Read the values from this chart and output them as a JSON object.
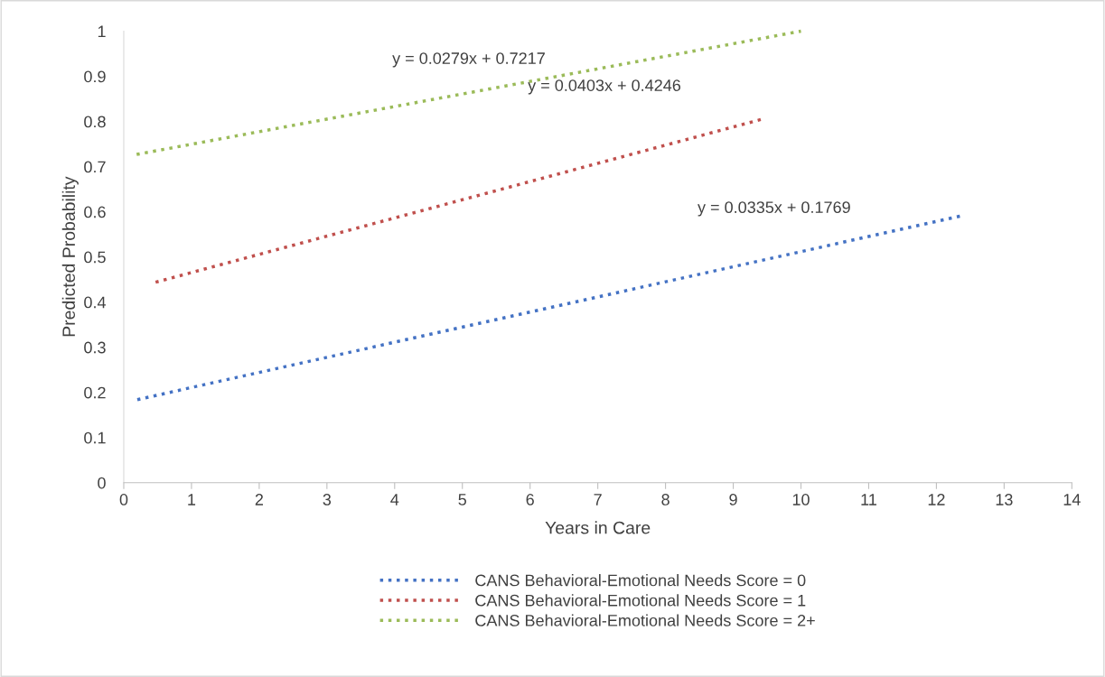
{
  "chart_data": {
    "type": "line",
    "xlabel": "Years in Care",
    "ylabel": "Predicted Probability",
    "series": [
      {
        "name": "CANS Behavioral-Emotional Needs Score = 0",
        "color": "#4472c4",
        "x": [
          0.2,
          12.4
        ],
        "values": [
          0.184,
          0.592
        ]
      },
      {
        "name": "CANS Behavioral-Emotional Needs Score = 1",
        "color": "#c0504d",
        "x": [
          0.47,
          9.45
        ],
        "values": [
          0.444,
          0.806
        ]
      },
      {
        "name": "CANS Behavioral-Emotional Needs Score = 2+",
        "color": "#9bbb59",
        "x": [
          0.19,
          10.0
        ],
        "values": [
          0.727,
          1.0
        ]
      }
    ],
    "annotations": [
      "y = 0.0279x + 0.7217",
      "y = 0.0403x + 0.4246",
      "y = 0.0335x + 0.1769"
    ],
    "xlim": [
      0,
      14
    ],
    "xticks": [
      0,
      1,
      2,
      3,
      4,
      5,
      6,
      7,
      8,
      9,
      10,
      11,
      12,
      13,
      14
    ],
    "ylim": [
      0,
      1
    ],
    "yticks": [
      0,
      0.1,
      0.2,
      0.3,
      0.4,
      0.5,
      0.6,
      0.7,
      0.8,
      0.9,
      1
    ],
    "line_style": "dotted",
    "marker": "none",
    "legend": "bottom",
    "grid": false
  }
}
